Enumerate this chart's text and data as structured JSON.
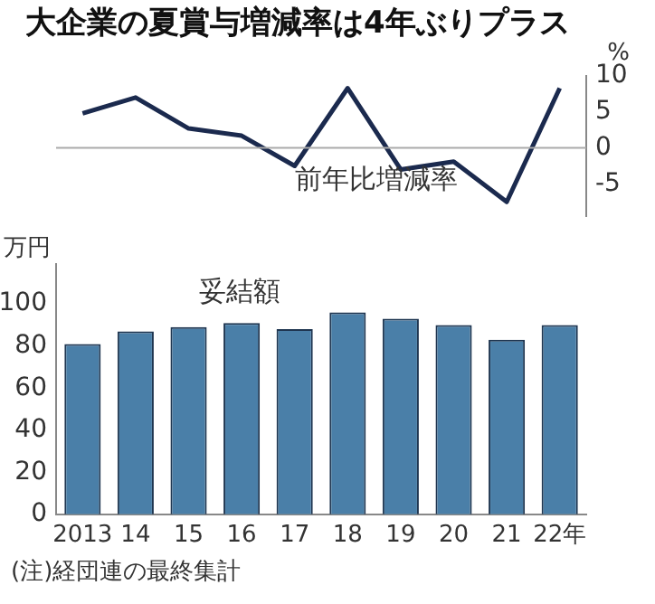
{
  "chart_data": [
    {
      "type": "line",
      "title": "大企業の夏賞与増減率は4年ぶりプラス",
      "ylabel": "%",
      "categories": [
        null,
        null,
        null,
        null,
        null,
        null,
        null,
        null,
        null,
        null
      ],
      "series": [
        {
          "color": "#1b2a4e",
          "values": [
            4.8,
            7.0,
            2.7,
            1.7,
            -2.5,
            8.3,
            -3.0,
            -1.9,
            -7.5,
            8.3
          ]
        }
      ],
      "ylim": [
        -9.5,
        10
      ],
      "yticks": [
        -5,
        0,
        5,
        10
      ],
      "tick_labels": "y",
      "grid": false,
      "legend": false,
      "marker": "none",
      "ref_lines": [
        {
          "axis": "y",
          "value": 0,
          "color": "#aaaaaa"
        }
      ],
      "annotations": [
        "前年比増減率"
      ]
    },
    {
      "type": "bar",
      "ylabel": "万円",
      "categories": [
        "2013",
        "14",
        "15",
        "16",
        "17",
        "18",
        "19",
        "20",
        "21",
        "22年"
      ],
      "values": [
        81,
        87,
        89,
        91,
        88,
        96,
        93,
        90,
        83,
        90
      ],
      "color": "#4a7fa8",
      "ylim": [
        0,
        119
      ],
      "yticks": [
        0,
        20,
        40,
        60,
        80,
        100
      ],
      "grid": false,
      "legend": false,
      "annotations": [
        "妥結額",
        "(注)経団連の最終集計"
      ]
    }
  ]
}
